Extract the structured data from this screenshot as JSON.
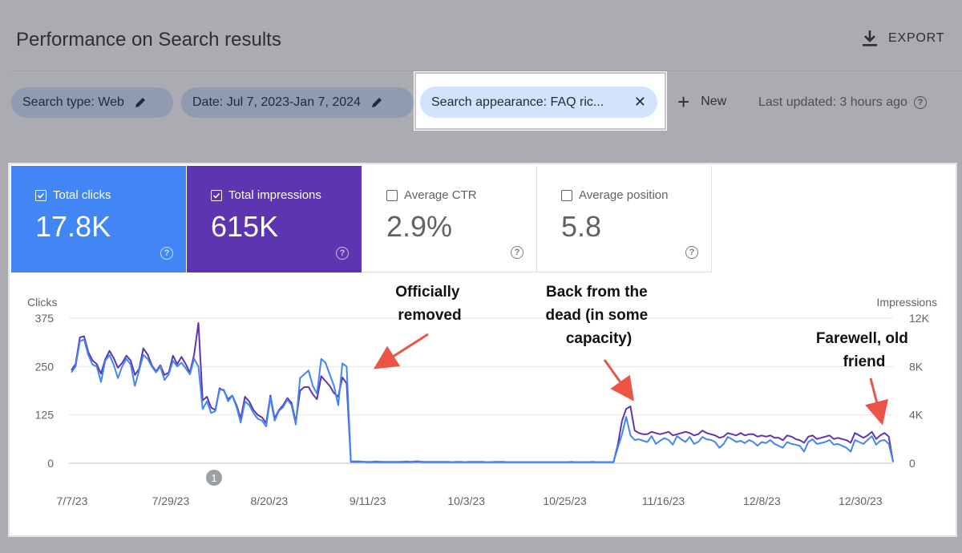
{
  "header": {
    "title": "Performance on Search results",
    "export_label": "EXPORT"
  },
  "filters": {
    "search_type": "Search type: Web",
    "date": "Date: Jul 7, 2023-Jan 7, 2024",
    "appearance": "Search appearance: FAQ ric...",
    "close_glyph": "✕",
    "new_label": "New",
    "last_updated": "Last updated: 3 hours ago"
  },
  "metrics": [
    {
      "label": "Total clicks",
      "value": "17.8K",
      "checked": true,
      "color": "#4285f4"
    },
    {
      "label": "Total impressions",
      "value": "615K",
      "checked": true,
      "color": "#5e35b1"
    },
    {
      "label": "Average CTR",
      "value": "2.9%",
      "checked": false
    },
    {
      "label": "Average position",
      "value": "5.8",
      "checked": false
    }
  ],
  "chart_data": {
    "type": "line",
    "left_axis_label": "Clicks",
    "right_axis_label": "Impressions",
    "left_ticks": [
      "375",
      "250",
      "125",
      "0"
    ],
    "right_ticks": [
      "12K",
      "8K",
      "4K",
      "0"
    ],
    "left_ylim": [
      0,
      375
    ],
    "right_ylim": [
      0,
      12000
    ],
    "x_ticks": [
      "7/7/23",
      "7/29/23",
      "8/20/23",
      "9/11/23",
      "10/3/23",
      "10/25/23",
      "11/16/23",
      "12/8/23",
      "12/30/23"
    ],
    "x_range": [
      "7/7/23",
      "1/7/24"
    ],
    "marker_label": "1",
    "grid": true,
    "series": [
      {
        "name": "Total clicks",
        "axis": "left",
        "color": "#4285f4",
        "values": [
          235,
          250,
          315,
          320,
          280,
          255,
          250,
          210,
          265,
          280,
          255,
          220,
          250,
          270,
          255,
          200,
          240,
          280,
          270,
          250,
          235,
          250,
          215,
          230,
          265,
          250,
          260,
          245,
          230,
          270,
          250,
          140,
          160,
          130,
          135,
          190,
          190,
          160,
          175,
          145,
          105,
          160,
          150,
          130,
          115,
          110,
          95,
          170,
          110,
          135,
          145,
          165,
          150,
          100,
          220,
          230,
          240,
          200,
          180,
          270,
          260,
          230,
          200,
          150,
          258,
          250,
          5,
          5,
          5,
          4,
          4,
          4,
          5,
          4,
          4,
          4,
          4,
          4,
          4,
          5,
          4,
          5,
          5,
          4,
          4,
          4,
          4,
          4,
          4,
          4,
          3,
          4,
          4,
          3,
          4,
          4,
          4,
          4,
          3,
          3,
          4,
          4,
          4,
          3,
          3,
          3,
          3,
          3,
          3,
          3,
          3,
          3,
          3,
          3,
          3,
          3,
          3,
          3,
          4,
          3,
          3,
          3,
          3,
          4,
          3,
          3,
          3,
          3,
          3,
          40,
          75,
          120,
          72,
          60,
          62,
          58,
          55,
          70,
          50,
          58,
          65,
          60,
          48,
          70,
          62,
          55,
          68,
          50,
          55,
          68,
          62,
          60,
          55,
          40,
          50,
          68,
          62,
          55,
          58,
          52,
          60,
          55,
          45,
          55,
          52,
          60,
          50,
          45,
          40,
          55,
          50,
          48,
          45,
          30,
          55,
          62,
          50,
          52,
          55,
          60,
          48,
          50,
          45,
          40,
          30,
          60,
          55,
          50,
          60,
          70,
          48,
          58,
          60,
          50,
          5
        ]
      },
      {
        "name": "Total impressions",
        "axis": "right",
        "color": "#5e35b1",
        "values": [
          7700,
          8200,
          10400,
          10500,
          9200,
          8500,
          8200,
          7400,
          8600,
          9300,
          8700,
          7900,
          8300,
          8900,
          8500,
          7300,
          7800,
          9500,
          9000,
          8100,
          7600,
          8100,
          7300,
          7500,
          8900,
          8200,
          8800,
          8200,
          7500,
          9000,
          11600,
          5200,
          5500,
          4600,
          4400,
          6200,
          6000,
          5300,
          5600,
          4800,
          3700,
          5500,
          5100,
          4400,
          4000,
          3800,
          3300,
          5600,
          3700,
          4400,
          4800,
          5400,
          5000,
          3400,
          6000,
          6300,
          6300,
          5700,
          5300,
          7200,
          6800,
          6400,
          5800,
          5500,
          7100,
          6600,
          120,
          120,
          110,
          110,
          100,
          100,
          110,
          100,
          100,
          100,
          100,
          100,
          100,
          110,
          100,
          110,
          110,
          100,
          100,
          100,
          100,
          100,
          100,
          100,
          90,
          100,
          100,
          90,
          100,
          100,
          100,
          100,
          90,
          90,
          100,
          100,
          100,
          90,
          90,
          90,
          90,
          90,
          90,
          90,
          90,
          90,
          90,
          90,
          90,
          90,
          90,
          90,
          100,
          90,
          90,
          90,
          90,
          100,
          90,
          90,
          90,
          90,
          90,
          1500,
          3500,
          4500,
          4700,
          2700,
          2500,
          2400,
          2400,
          2600,
          2500,
          2400,
          2500,
          2600,
          2300,
          2400,
          2500,
          2600,
          2500,
          2300,
          2400,
          2700,
          2500,
          2400,
          2300,
          2100,
          2200,
          2500,
          2400,
          2300,
          2500,
          2300,
          2400,
          2400,
          2200,
          2300,
          2200,
          2300,
          2100,
          2100,
          1900,
          2300,
          2200,
          2000,
          1900,
          1700,
          2200,
          2300,
          2000,
          2100,
          2200,
          2300,
          2000,
          2100,
          2000,
          1900,
          1700,
          2500,
          2300,
          2100,
          2300,
          2600,
          2000,
          2300,
          2500,
          2200,
          100
        ]
      }
    ]
  },
  "annotations": [
    {
      "lines": [
        "Officially",
        "removed"
      ]
    },
    {
      "lines": [
        "Back from the",
        "dead (in some",
        "capacity)"
      ]
    },
    {
      "lines": [
        "Farewell, old",
        "friend"
      ]
    }
  ],
  "colors": {
    "clicks": "#4285f4",
    "impressions": "#5e35b1",
    "arrow": "#ea5546",
    "chip_bg": "#8f9bb1",
    "chip_selected_bg": "#d2e3fc"
  }
}
